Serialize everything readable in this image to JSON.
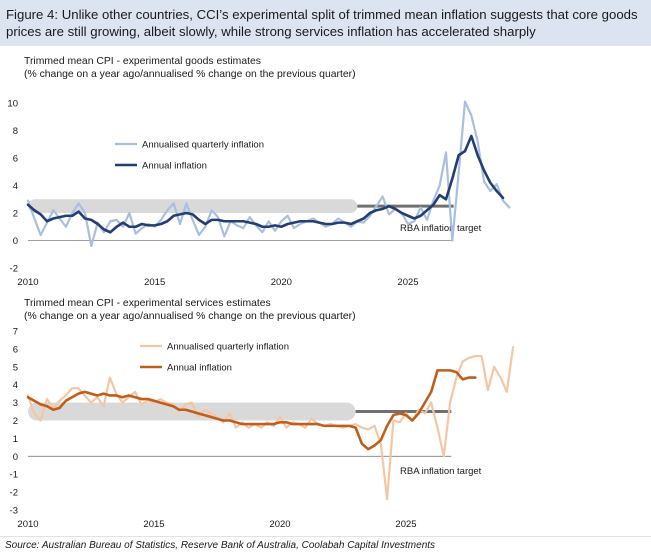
{
  "header": {
    "text": "Figure 4: Unlike other countries, CCI’s experimental split of trimmed mean inflation suggests that core goods prices are still growing, albeit slowly, while strong services inflation has accelerated sharply"
  },
  "source": "Source: Australian Bureau of Statistics, Reserve Bank of Australia, Coolabah Capital Investments",
  "colors": {
    "header_bg": "#dce3f1",
    "goods_quarterly": "#a9bfe0",
    "goods_annual": "#243e73",
    "services_quarterly": "#f5c6a3",
    "services_annual": "#c05e1c",
    "target_band": "#d9d9d9",
    "target_line": "#707070"
  },
  "chart_data": [
    {
      "type": "line",
      "title": "Trimmed mean CPI - experimental goods estimates",
      "subtitle": "(% change on a year ago/annualised % change on the previous quarter)",
      "xlim": [
        2010,
        2026.8
      ],
      "ylim": [
        -2,
        10
      ],
      "x_ticks": [
        "2010",
        "2015",
        "2020",
        "2025"
      ],
      "y_ticks": [
        "-2",
        "0",
        "2",
        "4",
        "6",
        "8",
        "10"
      ],
      "target_band": [
        2,
        3
      ],
      "target_band_until": 2023.0,
      "target_line_value": 2.5,
      "target_line_range": [
        2023.0,
        2026.8
      ],
      "target_label": "RBA inflation target",
      "legend": [
        "Annualised quarterly inflation",
        "Annual inflation"
      ],
      "series": [
        {
          "name": "Annualised quarterly inflation",
          "x_start": 2010.0,
          "x_step": 0.25,
          "values": [
            2.9,
            1.6,
            0.4,
            1.3,
            2.2,
            1.6,
            1.0,
            2.0,
            2.7,
            2.0,
            -0.4,
            1.3,
            0.6,
            1.4,
            1.5,
            1.0,
            2.0,
            0.5,
            0.9,
            1.2,
            1.0,
            1.5,
            2.2,
            2.7,
            1.2,
            2.7,
            1.5,
            0.4,
            1.0,
            2.2,
            1.7,
            0.3,
            1.4,
            1.1,
            0.9,
            1.7,
            1.1,
            0.6,
            1.4,
            0.7,
            1.4,
            1.8,
            0.9,
            1.2,
            1.4,
            1.6,
            1.3,
            1.0,
            1.2,
            1.6,
            1.3,
            1.0,
            1.4,
            1.3,
            1.8,
            2.5,
            3.2,
            1.9,
            2.3,
            2.0,
            1.2,
            1.4,
            2.4,
            1.5,
            2.9,
            4.0,
            6.4,
            0.0,
            4.9,
            10.1,
            9.1,
            7.2,
            4.3,
            3.6,
            4.1,
            2.9,
            2.4
          ]
        },
        {
          "name": "Annual inflation",
          "x_start": 2010.0,
          "x_step": 0.25,
          "values": [
            2.6,
            2.2,
            1.9,
            1.4,
            1.6,
            1.7,
            1.8,
            1.8,
            2.1,
            1.6,
            1.5,
            1.2,
            0.8,
            0.6,
            1.0,
            1.3,
            1.0,
            1.0,
            1.2,
            1.1,
            1.1,
            1.2,
            1.4,
            1.8,
            1.9,
            2.0,
            1.9,
            1.5,
            1.2,
            1.5,
            1.5,
            1.4,
            1.4,
            1.4,
            1.4,
            1.3,
            1.2,
            1.0,
            1.0,
            1.1,
            1.0,
            1.2,
            1.3,
            1.4,
            1.4,
            1.4,
            1.3,
            1.2,
            1.2,
            1.3,
            1.3,
            1.2,
            1.4,
            1.6,
            2.0,
            2.2,
            2.3,
            2.5,
            2.3,
            2.0,
            1.8,
            1.6,
            1.8,
            2.2,
            2.6,
            3.3,
            3.0,
            4.5,
            6.2,
            6.5,
            7.6,
            6.2,
            5.1,
            4.2,
            3.6,
            3.1
          ]
        }
      ]
    },
    {
      "type": "line",
      "title": "Trimmed mean CPI - experimental services estimates",
      "subtitle": "(% change on a year ago/annualised % change on the previous quarter)",
      "xlim": [
        2010,
        2026.8
      ],
      "ylim": [
        -3,
        7
      ],
      "x_ticks": [
        "2010",
        "2015",
        "2020",
        "2025"
      ],
      "y_ticks": [
        "-3",
        "-2",
        "-1",
        "0",
        "1",
        "2",
        "3",
        "4",
        "5",
        "6",
        "7"
      ],
      "target_band": [
        2,
        3
      ],
      "target_band_until": 2023.0,
      "target_line_value": 2.5,
      "target_line_range": [
        2023.0,
        2026.8
      ],
      "target_label": "RBA inflation target",
      "legend": [
        "Annualised quarterly inflation",
        "Annual inflation"
      ],
      "series": [
        {
          "name": "Annualised quarterly inflation",
          "x_start": 2010.0,
          "x_step": 0.25,
          "values": [
            3.4,
            2.4,
            2.0,
            3.2,
            2.7,
            3.1,
            3.4,
            3.8,
            3.8,
            3.4,
            3.0,
            3.3,
            2.8,
            4.4,
            3.5,
            3.0,
            3.3,
            3.6,
            2.9,
            3.1,
            3.0,
            3.2,
            3.0,
            2.9,
            2.5,
            2.9,
            3.0,
            2.2,
            2.6,
            2.4,
            2.2,
            1.9,
            2.4,
            1.6,
            1.9,
            1.6,
            1.8,
            1.6,
            1.9,
            1.7,
            2.2,
            1.6,
            1.9,
            1.8,
            1.6,
            2.1,
            1.8,
            1.7,
            1.8,
            1.7,
            1.6,
            1.7,
            1.8,
            1.6,
            1.5,
            1.7,
            0.7,
            -2.4,
            2.0,
            1.9,
            2.4,
            2.0,
            2.6,
            2.4,
            3.0,
            1.6,
            0.0,
            3.0,
            4.4,
            5.3,
            5.5,
            5.6,
            5.6,
            3.7,
            5.0,
            4.4,
            3.6,
            6.1
          ]
        },
        {
          "name": "Annual inflation",
          "x_start": 2010.0,
          "x_step": 0.25,
          "values": [
            3.3,
            3.1,
            2.9,
            2.8,
            2.6,
            2.7,
            3.1,
            3.3,
            3.5,
            3.6,
            3.5,
            3.4,
            3.5,
            3.4,
            3.4,
            3.3,
            3.4,
            3.3,
            3.2,
            3.2,
            3.1,
            3.0,
            2.9,
            2.8,
            2.6,
            2.6,
            2.5,
            2.4,
            2.3,
            2.2,
            2.1,
            2.0,
            2.0,
            1.9,
            1.8,
            1.8,
            1.8,
            1.8,
            1.8,
            1.8,
            1.9,
            1.9,
            1.8,
            1.8,
            1.8,
            1.8,
            1.8,
            1.7,
            1.7,
            1.7,
            1.7,
            1.7,
            1.6,
            0.7,
            0.4,
            0.6,
            0.9,
            1.7,
            2.3,
            2.4,
            2.3,
            2.0,
            2.4,
            3.0,
            3.6,
            4.8,
            4.8,
            4.8,
            4.7,
            4.3,
            4.4,
            4.4
          ]
        }
      ]
    }
  ]
}
